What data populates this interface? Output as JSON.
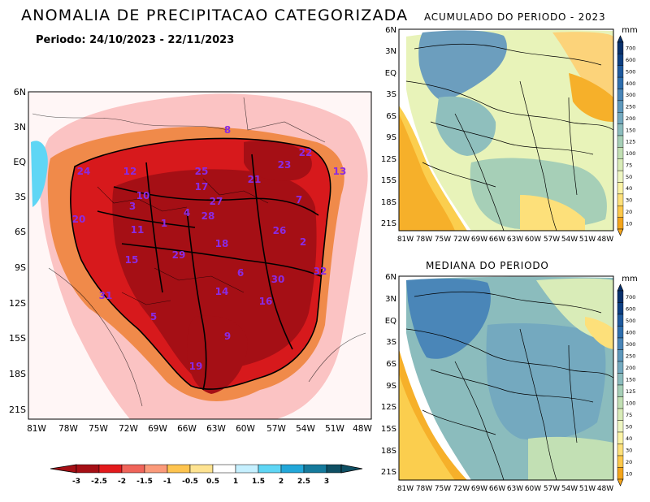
{
  "main_map": {
    "title": "ANOMALIA DE PRECIPITACAO CATEGORIZADA",
    "period": "Periodo: 24/10/2023 - 22/11/2023",
    "lat_labels": [
      "6N",
      "3N",
      "EQ",
      "3S",
      "6S",
      "9S",
      "12S",
      "15S",
      "18S",
      "21S"
    ],
    "lon_labels": [
      "81W",
      "78W",
      "75W",
      "72W",
      "69W",
      "66W",
      "63W",
      "60W",
      "57W",
      "54W",
      "51W",
      "48W"
    ],
    "basin_labels": [
      "24",
      "12",
      "25",
      "23",
      "22",
      "21",
      "10",
      "3",
      "7",
      "4",
      "27",
      "1",
      "28",
      "11",
      "13",
      "26",
      "20",
      "15",
      "18",
      "6",
      "30",
      "32",
      "31",
      "14",
      "16",
      "5",
      "9",
      "19",
      "29",
      "2",
      "8",
      "17"
    ],
    "legend": {
      "ticks": [
        "-3",
        "-2.5",
        "-2",
        "-1.5",
        "-1",
        "-0.5",
        "0.5",
        "1",
        "1.5",
        "2",
        "2.5",
        "3"
      ],
      "colors": [
        "#a50f15",
        "#e31a1c",
        "#f0645a",
        "#fb9a7a",
        "#fec44f",
        "#fee391",
        "#ffffff",
        "#c6f0ff",
        "#5fd6f5",
        "#22a7d9",
        "#157a9c",
        "#0e4f63"
      ]
    }
  },
  "acumulado_map": {
    "title": "ACUMULADO DO PERIODO - 2023",
    "lat_labels": [
      "6N",
      "3N",
      "EQ",
      "3S",
      "6S",
      "9S",
      "12S",
      "15S",
      "18S",
      "21S"
    ],
    "lon_labels": [
      "81W",
      "78W",
      "75W",
      "72W",
      "69W",
      "66W",
      "63W",
      "60W",
      "57W",
      "54W",
      "51W",
      "48W"
    ],
    "colorbar": {
      "unit": "mm",
      "ticks": [
        "700",
        "600",
        "500",
        "400",
        "300",
        "250",
        "200",
        "150",
        "125",
        "100",
        "75",
        "50",
        "40",
        "30",
        "20",
        "10"
      ],
      "colors": [
        "#08306b",
        "#0d3f82",
        "#1f5a9e",
        "#2f6fae",
        "#4a86b8",
        "#5e98bc",
        "#74a9bf",
        "#8bbcbd",
        "#a6cfb7",
        "#c2e0b4",
        "#d9ecb8",
        "#eef6c2",
        "#fbf3a6",
        "#fde07a",
        "#fcc84b",
        "#f4a51c"
      ]
    }
  },
  "mediana_map": {
    "title": "MEDIANA DO PERIODO",
    "lat_labels": [
      "6N",
      "3N",
      "EQ",
      "3S",
      "6S",
      "9S",
      "12S",
      "15S",
      "18S",
      "21S"
    ],
    "lon_labels": [
      "81W",
      "78W",
      "75W",
      "72W",
      "69W",
      "66W",
      "63W",
      "60W",
      "57W",
      "54W",
      "51W",
      "48W"
    ],
    "colorbar": {
      "unit": "mm",
      "ticks": [
        "700",
        "600",
        "500",
        "400",
        "300",
        "250",
        "200",
        "150",
        "125",
        "100",
        "75",
        "50",
        "40",
        "30",
        "20",
        "10"
      ]
    }
  }
}
